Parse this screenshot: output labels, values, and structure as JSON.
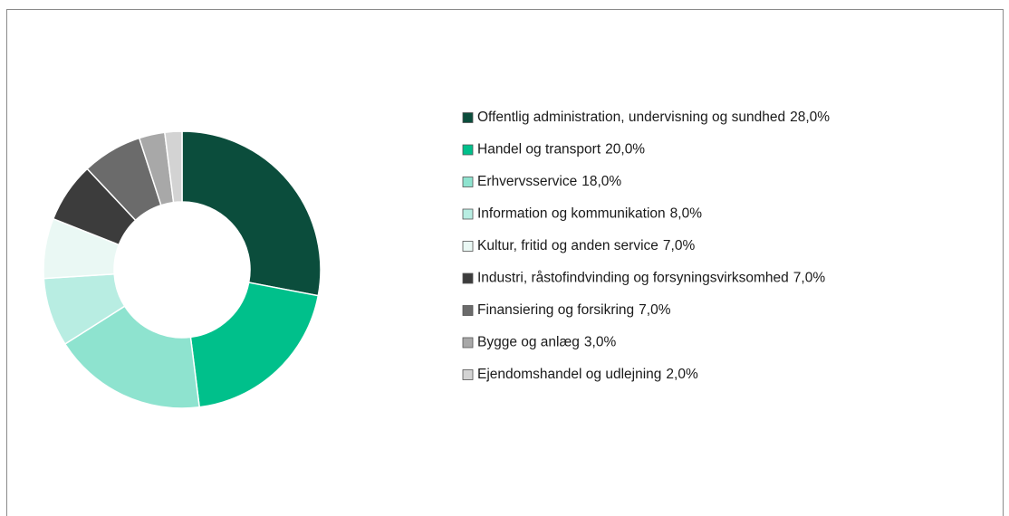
{
  "chart_data": {
    "type": "pie",
    "categories": [
      "Offentlig administration, undervisning og sundhed",
      "Handel og transport",
      "Erhvervsservice",
      "Information og kommunikation",
      "Kultur, fritid og anden service",
      "Industri, råstofindvinding og forsyningsvirksomhed",
      "Finansiering og forsikring",
      "Bygge og anlæg",
      "Ejendomshandel og udlejning"
    ],
    "values": [
      28,
      20,
      18,
      8,
      7,
      7,
      7,
      3,
      2
    ],
    "value_labels": [
      "28,0%",
      "20,0%",
      "18,0%",
      "8,0%",
      "7,0%",
      "7,0%",
      "7,0%",
      "3,0%",
      "2,0%"
    ],
    "colors": [
      "#0b4d3c",
      "#00c08b",
      "#8ee3cf",
      "#b8ede2",
      "#eaf8f4",
      "#3c3c3c",
      "#6b6b6b",
      "#a8a8a8",
      "#d3d3d3"
    ],
    "legend": "right"
  }
}
